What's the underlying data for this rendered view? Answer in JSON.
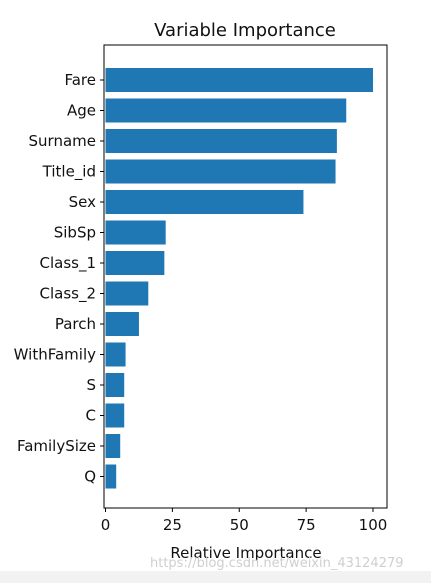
{
  "chart_data": {
    "type": "bar",
    "orientation": "horizontal",
    "title": "Variable Importance",
    "xlabel": "Relative Importance",
    "ylabel": "",
    "xlim": [
      0,
      105
    ],
    "xticks": [
      0,
      25,
      50,
      75,
      100
    ],
    "xtick_labels": [
      "0",
      "25",
      "50",
      "75",
      "100"
    ],
    "categories": [
      "Fare",
      "Age",
      "Surname",
      "Title_id",
      "Sex",
      "SibSp",
      "Class_1",
      "Class_2",
      "Parch",
      "WithFamily",
      "S",
      "C",
      "FamilySize",
      "Q"
    ],
    "values": [
      100,
      90,
      86.5,
      86,
      74,
      22.5,
      22,
      16,
      12.5,
      7.5,
      7,
      7,
      5.5,
      4
    ],
    "bar_color": "#1f77b4",
    "grid": false,
    "legend": "none"
  },
  "watermark": "https://blog.csdn.net/weixin_43124279"
}
